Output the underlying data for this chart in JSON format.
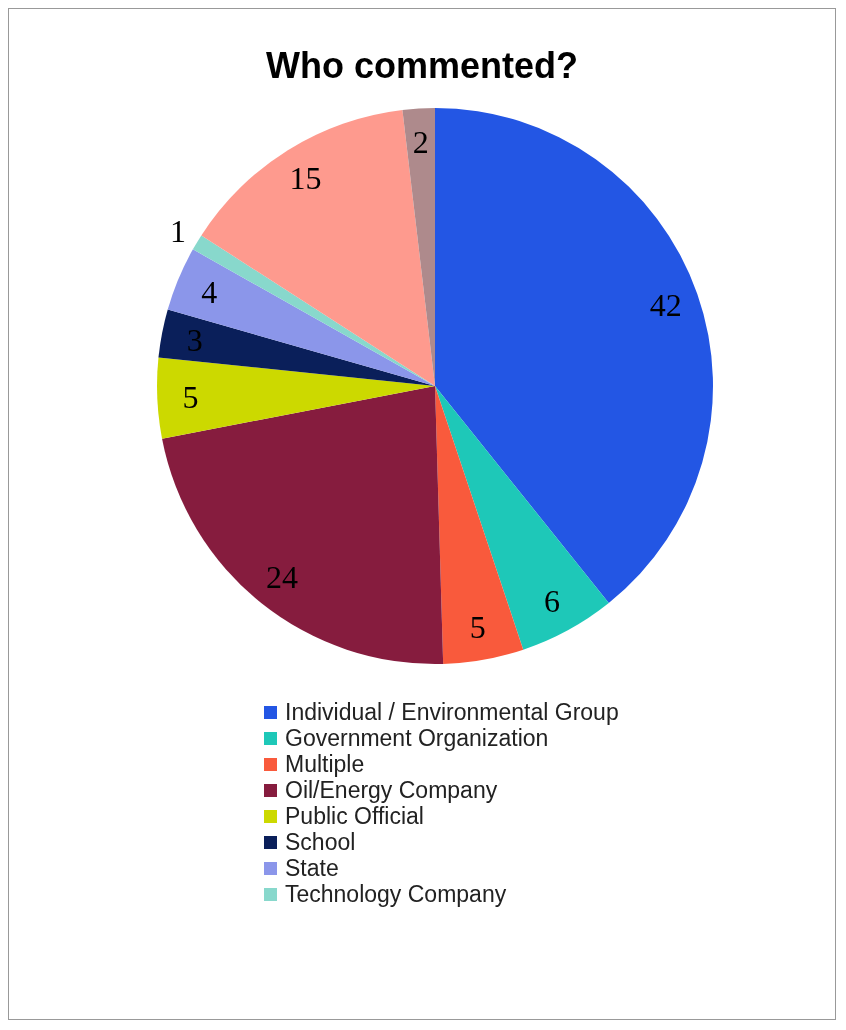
{
  "chart_data": {
    "type": "pie",
    "title": "Who commented?",
    "categories": [
      "Individual / Environmental Group",
      "Government Organization",
      "Multiple",
      "Oil/Energy Company",
      "Public Official",
      "School",
      "State",
      "Technology Company",
      null,
      null
    ],
    "values": [
      42,
      6,
      5,
      24,
      5,
      3,
      4,
      1,
      15,
      2
    ],
    "colors": [
      "#2356e4",
      "#1ec8b8",
      "#f95a3c",
      "#861c3e",
      "#ccd900",
      "#0a1f5a",
      "#8b96ea",
      "#88d8cc",
      "#fe9a8e",
      "#ae8a8c"
    ],
    "data_labels": true,
    "legend": "bottom"
  }
}
